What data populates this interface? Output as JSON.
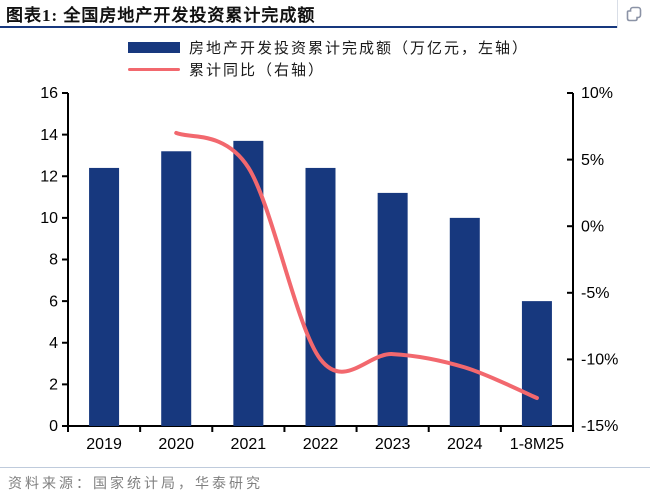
{
  "header": {
    "title": "图表1:  全国房地产开发投资累计完成额",
    "copy_icon": "copy-icon"
  },
  "legend": {
    "bar_label": "房地产开发投资累计完成额（万亿元，左轴）",
    "line_label": "累计同比（右轴）"
  },
  "chart_data": {
    "type": "bar",
    "title": "全国房地产开发投资累计完成额",
    "categories": [
      "2019",
      "2020",
      "2021",
      "2022",
      "2023",
      "2024",
      "1-8M25"
    ],
    "series": [
      {
        "name": "房地产开发投资累计完成额（万亿元，左轴）",
        "type": "bar",
        "axis": "left",
        "color": "#17387E",
        "values": [
          12.4,
          13.2,
          13.7,
          12.4,
          11.2,
          10.0,
          6.0
        ]
      },
      {
        "name": "累计同比（右轴）",
        "type": "line",
        "axis": "right",
        "color": "#F2686E",
        "values": [
          null,
          7.0,
          4.4,
          -10.0,
          -9.6,
          -10.6,
          -12.9
        ]
      }
    ],
    "left_axis": {
      "min": 0,
      "max": 16,
      "step": 2,
      "tick_labels": [
        "0",
        "2",
        "4",
        "6",
        "8",
        "10",
        "12",
        "14",
        "16"
      ]
    },
    "right_axis": {
      "min": -15,
      "max": 10,
      "step": 5,
      "tick_labels": [
        "-15%",
        "-10%",
        "-5%",
        "0%",
        "5%",
        "10%"
      ]
    },
    "grid": false,
    "legend_position": "top"
  },
  "footer": {
    "source": "资料来源：国家统计局，华泰研究"
  },
  "colors": {
    "bar": "#17387E",
    "line": "#F2686E",
    "axis": "#000000",
    "title_underline": "#17387E",
    "footer_text": "#808080",
    "footer_divider": "#BFCBDC",
    "icon": "#8B93A6"
  }
}
